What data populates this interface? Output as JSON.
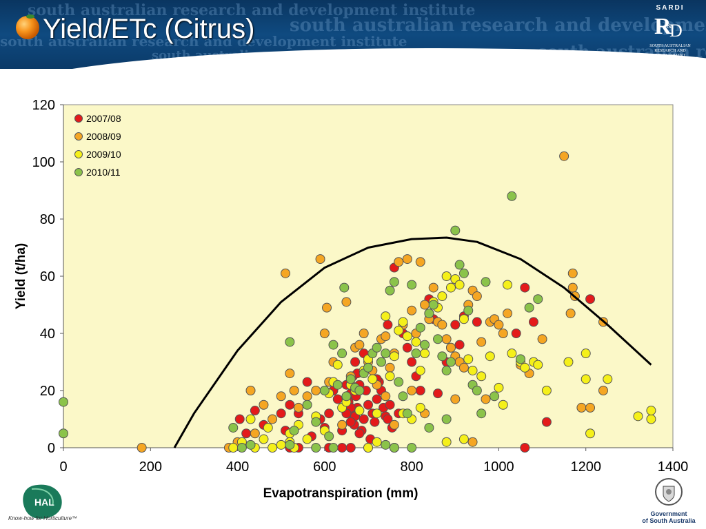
{
  "slide": {
    "title": "Yield/ETc (Citrus)",
    "watermark_text": "south australian research and development institute"
  },
  "logos": {
    "sardi_name": "SARDI",
    "sardi_subtitle_1": "SOUTH AUSTRALIAN",
    "sardi_subtitle_2": "RESEARCH AND",
    "sardi_subtitle_3": "DEVELOPMENT",
    "sardi_subtitle_4": "INSTITUTE",
    "hal_name": "HAL",
    "hal_tagline": "Know-how for Horticulture™",
    "gov_line1": "Government",
    "gov_line2": "of South Australia"
  },
  "colors": {
    "plot_bg": "#FBF8C8",
    "s2007": "#E41A1A",
    "s2008": "#F5A623",
    "s2009": "#F5F01A",
    "s2010": "#8BC34A",
    "curve": "#000000"
  },
  "chart_data": {
    "type": "scatter",
    "title": "",
    "xlabel": "Evapotranspiration (mm)",
    "ylabel": "Yield (t/ha)",
    "xlim": [
      0,
      1400
    ],
    "ylim": [
      0,
      120
    ],
    "xticks": [
      0,
      200,
      400,
      600,
      800,
      1000,
      1200,
      1400
    ],
    "yticks": [
      0,
      20,
      40,
      60,
      80,
      100,
      120
    ],
    "grid": false,
    "legend_position": "top-left",
    "series": [
      {
        "name": "2007/08",
        "color": "#E41A1A",
        "points": [
          [
            405,
            10
          ],
          [
            420,
            5
          ],
          [
            440,
            13
          ],
          [
            460,
            8
          ],
          [
            500,
            12
          ],
          [
            510,
            6
          ],
          [
            520,
            15
          ],
          [
            540,
            12
          ],
          [
            560,
            23
          ],
          [
            570,
            4
          ],
          [
            590,
            10
          ],
          [
            600,
            7
          ],
          [
            610,
            12
          ],
          [
            620,
            20
          ],
          [
            630,
            17
          ],
          [
            640,
            6
          ],
          [
            650,
            22
          ],
          [
            655,
            16
          ],
          [
            660,
            19
          ],
          [
            662,
            12
          ],
          [
            665,
            25
          ],
          [
            668,
            8
          ],
          [
            670,
            30
          ],
          [
            672,
            18
          ],
          [
            675,
            14
          ],
          [
            680,
            22
          ],
          [
            685,
            6
          ],
          [
            690,
            10
          ],
          [
            695,
            20
          ],
          [
            700,
            15
          ],
          [
            705,
            3
          ],
          [
            710,
            12
          ],
          [
            715,
            9
          ],
          [
            720,
            17
          ],
          [
            725,
            23
          ],
          [
            730,
            20
          ],
          [
            735,
            14
          ],
          [
            740,
            11
          ],
          [
            745,
            43
          ],
          [
            750,
            15
          ],
          [
            755,
            7
          ],
          [
            760,
            63
          ],
          [
            770,
            12
          ],
          [
            780,
            40
          ],
          [
            790,
            35
          ],
          [
            800,
            30
          ],
          [
            810,
            25
          ],
          [
            820,
            20
          ],
          [
            840,
            52
          ],
          [
            850,
            45
          ],
          [
            860,
            19
          ],
          [
            880,
            30
          ],
          [
            890,
            35
          ],
          [
            900,
            43
          ],
          [
            910,
            36
          ],
          [
            920,
            46
          ],
          [
            950,
            44
          ],
          [
            1040,
            40
          ],
          [
            1060,
            56
          ],
          [
            1080,
            44
          ],
          [
            1110,
            9
          ],
          [
            1210,
            52
          ],
          [
            1060,
            0
          ],
          [
            640,
            0
          ],
          [
            660,
            0
          ],
          [
            700,
            0
          ],
          [
            520,
            0
          ],
          [
            540,
            0
          ],
          [
            680,
            5
          ],
          [
            660,
            14
          ],
          [
            675,
            26
          ],
          [
            690,
            33
          ],
          [
            720,
            24
          ],
          [
            745,
            10
          ],
          [
            670,
            11
          ],
          [
            660,
            9
          ],
          [
            650,
            12
          ],
          [
            610,
            0
          ]
        ]
      },
      {
        "name": "2008/09",
        "color": "#F5A623",
        "points": [
          [
            180,
            0
          ],
          [
            380,
            0
          ],
          [
            400,
            2
          ],
          [
            430,
            20
          ],
          [
            440,
            5
          ],
          [
            460,
            15
          ],
          [
            480,
            10
          ],
          [
            500,
            18
          ],
          [
            510,
            61
          ],
          [
            520,
            26
          ],
          [
            530,
            20
          ],
          [
            540,
            14
          ],
          [
            560,
            18
          ],
          [
            580,
            20
          ],
          [
            590,
            66
          ],
          [
            600,
            40
          ],
          [
            605,
            49
          ],
          [
            610,
            23
          ],
          [
            620,
            30
          ],
          [
            640,
            8
          ],
          [
            650,
            51
          ],
          [
            660,
            25
          ],
          [
            670,
            35
          ],
          [
            680,
            36
          ],
          [
            690,
            40
          ],
          [
            700,
            30
          ],
          [
            710,
            27
          ],
          [
            720,
            22
          ],
          [
            730,
            38
          ],
          [
            740,
            39
          ],
          [
            750,
            28
          ],
          [
            760,
            33
          ],
          [
            770,
            65
          ],
          [
            780,
            43
          ],
          [
            790,
            66
          ],
          [
            800,
            48
          ],
          [
            810,
            40
          ],
          [
            820,
            65
          ],
          [
            830,
            50
          ],
          [
            840,
            45
          ],
          [
            850,
            56
          ],
          [
            860,
            44
          ],
          [
            870,
            43
          ],
          [
            880,
            38
          ],
          [
            890,
            35
          ],
          [
            900,
            32
          ],
          [
            910,
            30
          ],
          [
            920,
            28
          ],
          [
            930,
            50
          ],
          [
            940,
            55
          ],
          [
            950,
            53
          ],
          [
            960,
            37
          ],
          [
            970,
            17
          ],
          [
            980,
            44
          ],
          [
            990,
            45
          ],
          [
            1000,
            43
          ],
          [
            1010,
            40
          ],
          [
            1020,
            47
          ],
          [
            1050,
            29
          ],
          [
            1070,
            26
          ],
          [
            1100,
            38
          ],
          [
            1150,
            102
          ],
          [
            1165,
            47
          ],
          [
            1170,
            56
          ],
          [
            1170,
            61
          ],
          [
            1175,
            53
          ],
          [
            1190,
            14
          ],
          [
            1210,
            14
          ],
          [
            1240,
            20
          ],
          [
            1240,
            44
          ],
          [
            800,
            20
          ],
          [
            740,
            18
          ],
          [
            760,
            8
          ],
          [
            830,
            12
          ],
          [
            900,
            17
          ],
          [
            940,
            2
          ]
        ]
      },
      {
        "name": "2009/10",
        "color": "#F5F01A",
        "points": [
          [
            390,
            0
          ],
          [
            410,
            2
          ],
          [
            430,
            10
          ],
          [
            440,
            0
          ],
          [
            460,
            3
          ],
          [
            470,
            7
          ],
          [
            480,
            0
          ],
          [
            500,
            1
          ],
          [
            520,
            5
          ],
          [
            530,
            0
          ],
          [
            540,
            8
          ],
          [
            560,
            3
          ],
          [
            580,
            11
          ],
          [
            600,
            6
          ],
          [
            610,
            19
          ],
          [
            620,
            23
          ],
          [
            630,
            29
          ],
          [
            640,
            14
          ],
          [
            650,
            16
          ],
          [
            660,
            22
          ],
          [
            670,
            20
          ],
          [
            680,
            13
          ],
          [
            690,
            27
          ],
          [
            700,
            31
          ],
          [
            710,
            24
          ],
          [
            720,
            12
          ],
          [
            730,
            30
          ],
          [
            740,
            46
          ],
          [
            750,
            25
          ],
          [
            760,
            32
          ],
          [
            770,
            41
          ],
          [
            780,
            44
          ],
          [
            790,
            39
          ],
          [
            800,
            10
          ],
          [
            810,
            37
          ],
          [
            820,
            27
          ],
          [
            830,
            33
          ],
          [
            840,
            47
          ],
          [
            850,
            51
          ],
          [
            860,
            49
          ],
          [
            870,
            53
          ],
          [
            880,
            60
          ],
          [
            890,
            56
          ],
          [
            900,
            59
          ],
          [
            910,
            57
          ],
          [
            920,
            45
          ],
          [
            930,
            31
          ],
          [
            940,
            27
          ],
          [
            960,
            25
          ],
          [
            980,
            32
          ],
          [
            1000,
            21
          ],
          [
            1010,
            15
          ],
          [
            1020,
            57
          ],
          [
            1030,
            33
          ],
          [
            1050,
            30
          ],
          [
            1060,
            28
          ],
          [
            1080,
            30
          ],
          [
            1090,
            29
          ],
          [
            1110,
            20
          ],
          [
            1160,
            30
          ],
          [
            1200,
            24
          ],
          [
            1200,
            33
          ],
          [
            1210,
            5
          ],
          [
            1250,
            24
          ],
          [
            1320,
            11
          ],
          [
            1350,
            10
          ],
          [
            1350,
            13
          ],
          [
            780,
            12
          ],
          [
            760,
            0
          ],
          [
            720,
            2
          ],
          [
            700,
            0
          ],
          [
            820,
            14
          ],
          [
            880,
            2
          ],
          [
            920,
            3
          ],
          [
            520,
            2
          ]
        ]
      },
      {
        "name": "2010/11",
        "color": "#8BC34A",
        "points": [
          [
            0,
            16
          ],
          [
            0,
            5
          ],
          [
            390,
            7
          ],
          [
            410,
            0
          ],
          [
            430,
            1
          ],
          [
            520,
            37
          ],
          [
            530,
            6
          ],
          [
            560,
            15
          ],
          [
            580,
            9
          ],
          [
            600,
            20
          ],
          [
            610,
            4
          ],
          [
            620,
            36
          ],
          [
            630,
            22
          ],
          [
            640,
            33
          ],
          [
            645,
            56
          ],
          [
            650,
            18
          ],
          [
            660,
            24
          ],
          [
            670,
            21
          ],
          [
            680,
            20
          ],
          [
            690,
            26
          ],
          [
            700,
            28
          ],
          [
            710,
            33
          ],
          [
            720,
            35
          ],
          [
            730,
            30
          ],
          [
            740,
            33
          ],
          [
            750,
            55
          ],
          [
            760,
            58
          ],
          [
            770,
            23
          ],
          [
            780,
            18
          ],
          [
            790,
            12
          ],
          [
            800,
            57
          ],
          [
            810,
            33
          ],
          [
            820,
            42
          ],
          [
            830,
            36
          ],
          [
            840,
            47
          ],
          [
            850,
            50
          ],
          [
            860,
            38
          ],
          [
            870,
            32
          ],
          [
            880,
            27
          ],
          [
            890,
            30
          ],
          [
            900,
            76
          ],
          [
            910,
            64
          ],
          [
            920,
            61
          ],
          [
            930,
            48
          ],
          [
            940,
            22
          ],
          [
            950,
            20
          ],
          [
            960,
            12
          ],
          [
            970,
            58
          ],
          [
            990,
            18
          ],
          [
            1030,
            88
          ],
          [
            1050,
            31
          ],
          [
            1070,
            49
          ],
          [
            1090,
            52
          ],
          [
            880,
            10
          ],
          [
            840,
            7
          ],
          [
            800,
            0
          ],
          [
            760,
            0
          ],
          [
            740,
            1
          ],
          [
            620,
            0
          ],
          [
            580,
            0
          ],
          [
            520,
            1
          ]
        ]
      },
      {
        "name": "",
        "type": "curve",
        "color": "#000000",
        "points": [
          [
            255,
            0
          ],
          [
            300,
            12
          ],
          [
            400,
            34
          ],
          [
            500,
            51
          ],
          [
            600,
            63
          ],
          [
            700,
            70
          ],
          [
            800,
            73
          ],
          [
            880,
            73.5
          ],
          [
            950,
            72
          ],
          [
            1050,
            66
          ],
          [
            1150,
            56
          ],
          [
            1250,
            43
          ],
          [
            1350,
            29
          ]
        ]
      }
    ]
  }
}
